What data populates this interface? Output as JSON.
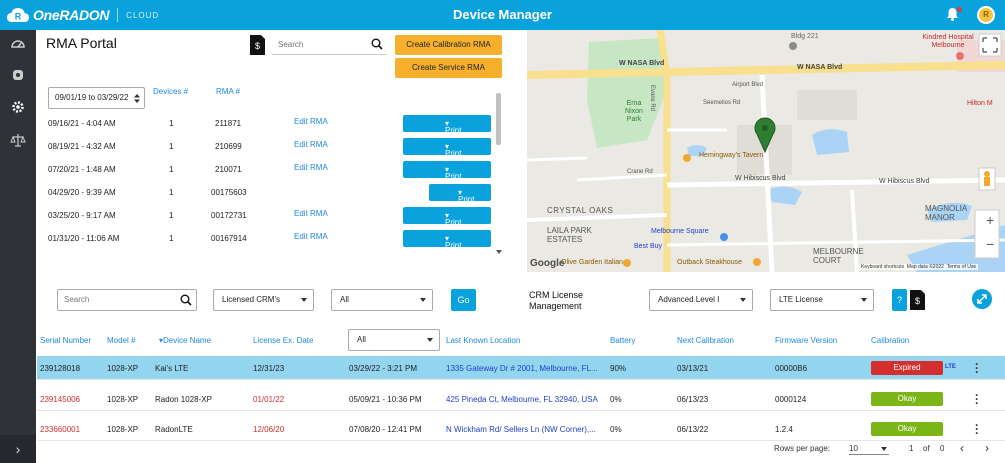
{
  "header": {
    "logo_text": "OneRADON",
    "logo_sub": "CLOUD",
    "title": "Device Manager",
    "avatar_initial": "R"
  },
  "rma": {
    "title": "RMA Portal",
    "search_placeholder": "Search",
    "create_calibration_label": "Create Calibration RMA",
    "create_service_label": "Create Service RMA",
    "date_range": "09/01/19 to 03/29/22",
    "col_devices": "Devices #",
    "col_rma": "RMA #",
    "edit_label": "Edit RMA",
    "print_label": "Print",
    "rows": [
      {
        "date": "09/16/21 - 4:04 AM",
        "devices": "1",
        "rma": "211871",
        "edit": true
      },
      {
        "date": "08/19/21 - 4:32 AM",
        "devices": "1",
        "rma": "210699",
        "edit": true
      },
      {
        "date": "07/20/21 - 1:48 AM",
        "devices": "1",
        "rma": "210071",
        "edit": true
      },
      {
        "date": "04/29/20 - 9:39 AM",
        "devices": "1",
        "rma": "00175603",
        "edit": false
      },
      {
        "date": "03/25/20 - 9:17 AM",
        "devices": "1",
        "rma": "00172731",
        "edit": true
      },
      {
        "date": "01/31/20 - 11:06 AM",
        "devices": "1",
        "rma": "00167914",
        "edit": true
      }
    ]
  },
  "map": {
    "labels": {
      "bldg": "Bldg 221",
      "hospital": "Kindred Hospital Melbourne",
      "hilton": "Hilton M",
      "nasa1": "W NASA Blvd",
      "nasa2": "W NASA Blvd",
      "erna": "Erna Nixon Park",
      "hemingway": "Hemingway's Tavern",
      "hibiscus1": "W Hibiscus Blvd",
      "hibiscus2": "W Hibiscus Blvd",
      "crystal": "CRYSTAL OAKS",
      "laila": "LAILA PARK ESTATES",
      "square": "Melbourne Square",
      "bestbuy": "Best Buy",
      "court": "MELBOURNE COURT",
      "magnolia": "MAGNOLIA MANOR",
      "outback": "Outback Steakhouse",
      "olive": "Olive Garden Italian",
      "google": "Google",
      "shortcuts": "Keyboard shortcuts",
      "mapdata": "Map data ©2022",
      "terms": "Terms of Use",
      "evans": "Evans Rd",
      "crane": "Crane Rd",
      "seemelios": "Seemelios Rd",
      "airport": "Airport Blvd",
      "zoom_in": "+",
      "zoom_out": "−"
    }
  },
  "filters": {
    "search_placeholder": "Search",
    "crm_select": "Licensed CRM's",
    "all_select": "All",
    "go_label": "Go",
    "crm_license_label": "CRM License Management",
    "level_select": "Advanced Level I",
    "lte_select": "LTE License"
  },
  "table": {
    "headers": {
      "serial": "Serial Number",
      "model": "Model #",
      "device": "Device Name",
      "license": "License Ex. Date",
      "date_filter": "All",
      "location": "Last Known Location",
      "battery": "Battery",
      "next_cal": "Next Calibration",
      "firmware": "Firmware Version",
      "calibration": "Calibration"
    },
    "rows": [
      {
        "serial": "239128018",
        "model": "1028-XP",
        "name": "Kai's LTE",
        "license": "12/31/23",
        "date": "03/29/22 - 3:21 PM",
        "location": "1335 Gateway Dr # 2001, Melbourne, FL...",
        "battery": "90%",
        "next_cal": "03/13/21",
        "firmware": "00000B6",
        "calibration": "Expired",
        "lte": "LTE"
      },
      {
        "serial": "239145006",
        "model": "1028-XP",
        "name": "Radon 1028-XP",
        "license": "01/01/22",
        "date": "05/09/21 - 10:36 PM",
        "location": "425 Pineda Ct, Melbourne, FL 32940, USA",
        "battery": "0%",
        "next_cal": "06/13/23",
        "firmware": "0000124",
        "calibration": "Okay",
        "lte": ""
      },
      {
        "serial": "233660001",
        "model": "1028-XP",
        "name": "RadonLTE",
        "license": "12/06/20",
        "date": "07/08/20 - 12:41 PM",
        "location": "N Wickham Rd/ Sellers Ln (NW Corner),...",
        "battery": "0%",
        "next_cal": "06/13/22",
        "firmware": "1.2.4",
        "calibration": "Okay",
        "lte": ""
      }
    ]
  },
  "pagination": {
    "rows_per_page_label": "Rows per page:",
    "rows_per_page": "10",
    "range": "1",
    "of_label": "of",
    "total": "0"
  },
  "colors": {
    "primary": "#0aa2dd",
    "accent_orange": "#f7b02c",
    "expired": "#d32f2f",
    "okay": "#7cb518",
    "selected_row": "#93d5ef"
  }
}
